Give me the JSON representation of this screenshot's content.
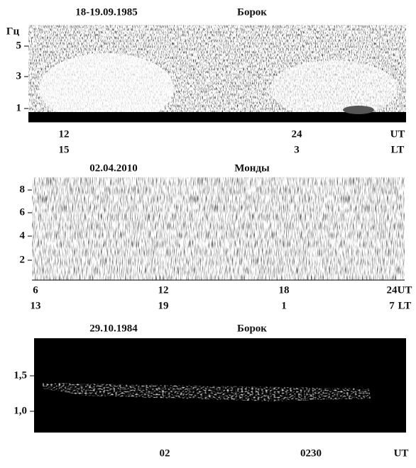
{
  "panels": [
    {
      "date": "18-19.09.1985",
      "station": "Борок",
      "y_axis_label": "Гц",
      "yticks": [
        "5",
        "3",
        "1"
      ],
      "ut_ticks": [
        "12",
        "24"
      ],
      "lt_ticks": [
        "15",
        "3"
      ],
      "ut_label": "UT",
      "lt_label": "LT"
    },
    {
      "date": "02.04.2010",
      "station": "Монды",
      "yticks": [
        "8",
        "6",
        "4",
        "2"
      ],
      "ut_ticks": [
        "6",
        "12",
        "18",
        "24"
      ],
      "lt_ticks": [
        "13",
        "19",
        "1",
        "7"
      ],
      "ut_label": "UT",
      "lt_label": "LT"
    },
    {
      "date": "29.10.1984",
      "station": "Борок",
      "yticks": [
        "1,5",
        "1,0"
      ],
      "ut_ticks": [
        "02",
        "0230"
      ],
      "ut_label": "UT"
    }
  ]
}
